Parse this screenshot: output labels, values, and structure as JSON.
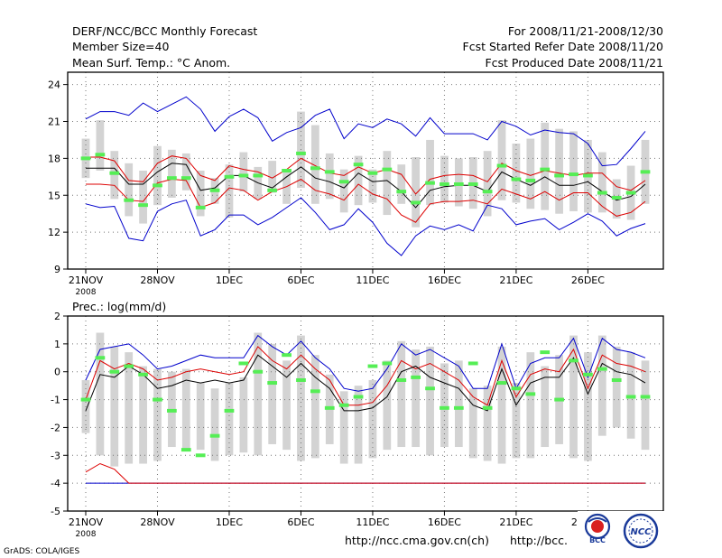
{
  "header": {
    "title": "DERF/NCC/BCC Monthly Forecast",
    "member_size": "Member Size=40",
    "variable": "Mean Surf. Temp.: °C Anom.",
    "period": "For 2008/11/21-2008/12/30",
    "fcst_started": "Fcst Started Refer Date 2008/11/20",
    "fcst_produced": "Fcst Produced Date 2008/11/21"
  },
  "footer": {
    "grads_credit": "GrADS: COLA/IGES",
    "url_ncc": "http://ncc.cma.gov.cn(ch)",
    "url_bcc": "http://bcc.",
    "logo_bcc": "BCC",
    "logo_ncc": "NCC"
  },
  "colors": {
    "box": "#d3d3d3",
    "median": "#55ee55",
    "mean": "#000000",
    "spread": "#dd0000",
    "extreme": "#0000cc",
    "grid": "#777777"
  },
  "chart_data": [
    {
      "type": "box-plume",
      "title": "Mean Surf. Temp.: °C Anom.",
      "start_date": "2008-11-21",
      "days": 40,
      "x_tick_labels": [
        "21NOV",
        "28NOV",
        "1DEC",
        "6DEC",
        "11DEC",
        "16DEC",
        "21DEC",
        "26DEC"
      ],
      "x_tick_days": [
        0,
        5,
        10,
        15,
        20,
        25,
        30,
        35
      ],
      "year_label": "2008",
      "ylim": [
        9,
        25
      ],
      "y_ticks": [
        9,
        12,
        15,
        18,
        21,
        24
      ],
      "series": [
        {
          "name": "max",
          "values": [
            21.2,
            21.8,
            21.8,
            21.5,
            22.5,
            21.8,
            22.4,
            23.0,
            22.0,
            20.2,
            21.4,
            22.0,
            21.3,
            19.4,
            20.1,
            20.5,
            21.5,
            22.0,
            19.6,
            20.8,
            20.5,
            21.2,
            20.8,
            19.8,
            21.3,
            20.0,
            20.0,
            20.0,
            19.5,
            21.0,
            20.6,
            19.9,
            20.3,
            20.1,
            20.0,
            19.2,
            17.4,
            17.5,
            18.8,
            20.2
          ]
        },
        {
          "name": "upper",
          "values": [
            18.1,
            18.1,
            17.8,
            16.2,
            16.1,
            17.6,
            18.2,
            18.0,
            16.6,
            16.2,
            17.4,
            17.1,
            16.9,
            16.4,
            17.1,
            18.0,
            17.4,
            16.8,
            16.6,
            17.3,
            16.8,
            17.1,
            16.7,
            15.1,
            16.3,
            16.6,
            16.7,
            16.6,
            16.1,
            17.6,
            17.0,
            16.6,
            17.0,
            16.8,
            16.6,
            16.8,
            16.8,
            15.7,
            15.4,
            16.2
          ]
        },
        {
          "name": "mean",
          "values": [
            17.2,
            17.2,
            17.2,
            15.9,
            15.9,
            16.9,
            17.6,
            17.5,
            15.4,
            15.6,
            16.6,
            16.6,
            16.0,
            15.6,
            16.5,
            17.3,
            16.4,
            16.1,
            15.6,
            16.8,
            16.1,
            16.2,
            15.3,
            14.0,
            15.4,
            15.7,
            15.8,
            15.8,
            15.3,
            16.9,
            16.3,
            15.8,
            16.5,
            15.8,
            15.8,
            16.1,
            15.3,
            14.6,
            14.9,
            15.9
          ]
        },
        {
          "name": "lower",
          "values": [
            15.9,
            15.9,
            15.8,
            14.6,
            14.5,
            16.0,
            16.3,
            16.2,
            14.0,
            14.4,
            15.6,
            15.4,
            14.6,
            15.3,
            15.7,
            16.3,
            15.4,
            15.1,
            14.6,
            15.9,
            15.1,
            14.7,
            13.4,
            12.8,
            14.3,
            14.5,
            14.5,
            14.6,
            14.3,
            15.5,
            15.1,
            14.7,
            15.3,
            14.6,
            15.2,
            15.2,
            14.1,
            13.3,
            13.6,
            14.5
          ]
        },
        {
          "name": "min",
          "values": [
            14.3,
            14.0,
            14.1,
            11.5,
            11.3,
            13.7,
            14.3,
            14.6,
            11.7,
            12.2,
            13.4,
            13.4,
            12.6,
            13.2,
            14.0,
            14.8,
            13.6,
            12.2,
            12.6,
            13.9,
            12.8,
            11.1,
            10.1,
            11.7,
            12.5,
            12.2,
            12.6,
            12.1,
            14.2,
            13.9,
            12.6,
            12.9,
            13.1,
            12.2,
            12.8,
            13.5,
            12.9,
            11.7,
            12.3,
            12.7
          ]
        },
        {
          "name": "box_top",
          "values": [
            19.6,
            21.1,
            18.6,
            17.6,
            17.0,
            19.0,
            18.7,
            18.4,
            17.0,
            16.4,
            17.5,
            18.5,
            17.3,
            17.8,
            17.1,
            21.8,
            20.7,
            18.4,
            17.1,
            18.2,
            17.1,
            18.6,
            17.5,
            18.1,
            19.5,
            18.2,
            18.0,
            18.1,
            18.6,
            21.1,
            19.2,
            19.6,
            20.9,
            20.4,
            20.2,
            19.5,
            18.5,
            16.3,
            17.4,
            19.5
          ]
        },
        {
          "name": "box_bottom",
          "values": [
            16.4,
            17.0,
            14.7,
            13.3,
            12.7,
            14.2,
            14.8,
            15.4,
            13.3,
            14.3,
            13.2,
            15.3,
            14.7,
            15.2,
            14.3,
            15.6,
            14.3,
            14.7,
            13.6,
            14.2,
            14.4,
            13.4,
            14.3,
            12.4,
            14.2,
            14.4,
            14.1,
            13.9,
            13.3,
            14.6,
            14.4,
            13.9,
            13.8,
            13.5,
            13.7,
            13.6,
            13.6,
            13.1,
            13.0,
            14.3
          ]
        },
        {
          "name": "median",
          "values": [
            18.0,
            18.3,
            16.8,
            14.6,
            14.2,
            15.8,
            16.4,
            16.4,
            14.0,
            15.4,
            16.5,
            16.6,
            16.6,
            15.4,
            17.0,
            18.4,
            17.2,
            16.9,
            16.1,
            17.5,
            16.8,
            17.1,
            15.3,
            14.4,
            16.0,
            15.9,
            15.9,
            15.9,
            15.3,
            17.4,
            16.3,
            16.2,
            17.1,
            16.6,
            16.7,
            16.6,
            15.2,
            14.8,
            15.2,
            16.9
          ]
        }
      ]
    },
    {
      "type": "box-plume",
      "title": "Prec.: log(mm/d)",
      "start_date": "2008-11-21",
      "days": 40,
      "x_tick_labels": [
        "21NOV",
        "28NOV",
        "1DEC",
        "6DEC",
        "11DEC",
        "16DEC",
        "21DEC",
        "26DEC"
      ],
      "x_tick_days": [
        0,
        5,
        10,
        15,
        20,
        25,
        30,
        35
      ],
      "year_label": "2008",
      "ylim": [
        -5,
        2
      ],
      "y_ticks": [
        -5,
        -4,
        -3,
        -2,
        -1,
        0,
        1,
        2
      ],
      "series": [
        {
          "name": "max",
          "values": [
            -0.3,
            0.8,
            0.9,
            1.0,
            0.6,
            0.1,
            0.2,
            0.4,
            0.6,
            0.5,
            0.5,
            0.5,
            1.3,
            0.9,
            0.6,
            1.1,
            0.5,
            0.1,
            -0.6,
            -0.7,
            -0.6,
            0.1,
            1.0,
            0.6,
            0.8,
            0.5,
            0.2,
            -0.6,
            -0.6,
            1.0,
            -0.6,
            0.3,
            0.5,
            0.5,
            1.2,
            -0.2,
            1.2,
            0.8,
            0.7,
            0.5
          ]
        },
        {
          "name": "upper",
          "values": [
            -1.0,
            0.4,
            0.1,
            0.3,
            0.1,
            -0.3,
            -0.2,
            0.0,
            0.1,
            0.0,
            -0.1,
            0.0,
            0.9,
            0.4,
            0.1,
            0.6,
            0.1,
            -0.3,
            -1.2,
            -1.2,
            -1.1,
            -0.5,
            0.4,
            0.1,
            0.3,
            0.0,
            -0.3,
            -0.9,
            -1.2,
            0.4,
            -0.9,
            -0.1,
            0.1,
            0.0,
            0.8,
            -0.6,
            0.6,
            0.3,
            0.2,
            0.0
          ]
        },
        {
          "name": "mean",
          "values": [
            -1.4,
            -0.1,
            -0.2,
            0.2,
            -0.1,
            -0.6,
            -0.5,
            -0.3,
            -0.4,
            -0.3,
            -0.4,
            -0.3,
            0.6,
            0.2,
            -0.2,
            0.3,
            -0.2,
            -0.6,
            -1.4,
            -1.4,
            -1.3,
            -0.9,
            0.0,
            0.2,
            -0.2,
            -0.4,
            -0.6,
            -1.2,
            -1.4,
            0.1,
            -1.2,
            -0.4,
            -0.2,
            -0.2,
            0.5,
            -0.8,
            0.3,
            0.0,
            -0.1,
            -0.4
          ]
        },
        {
          "name": "lower",
          "values": [
            -3.6,
            -3.3,
            -3.5,
            -4.0,
            -4.0,
            -4.0,
            -4.0,
            -4.0,
            -4.0,
            -4.0,
            -4.0,
            -4.0,
            -4.0,
            -4.0,
            -4.0,
            -4.0,
            -4.0,
            -4.0,
            -4.0,
            -4.0,
            -4.0,
            -4.0,
            -4.0,
            -4.0,
            -4.0,
            -4.0,
            -4.0,
            -4.0,
            -4.0,
            -4.0,
            -4.0,
            -4.0,
            -4.0,
            -4.0,
            -4.0,
            -4.0,
            -4.0,
            -4.0,
            -4.0,
            -4.0
          ]
        },
        {
          "name": "min",
          "values": [
            -4.0,
            -4.0,
            -4.0,
            -4.0,
            -4.0,
            -4.0,
            -4.0,
            -4.0,
            -4.0,
            -4.0,
            -4.0,
            -4.0,
            -4.0,
            -4.0,
            -4.0,
            -4.0,
            -4.0,
            -4.0,
            -4.0,
            -4.0,
            -4.0,
            -4.0,
            -4.0,
            -4.0,
            -4.0,
            -4.0,
            -4.0,
            -4.0,
            -4.0,
            -4.0,
            -4.0,
            -4.0,
            -4.0,
            -4.0,
            -4.0,
            -4.0,
            -4.0,
            -4.0,
            -4.0,
            -4.0
          ]
        },
        {
          "name": "box_top",
          "values": [
            -0.3,
            1.4,
            0.9,
            0.7,
            0.2,
            0.1,
            0.0,
            0.1,
            -0.4,
            -0.6,
            -0.4,
            -0.2,
            1.4,
            1.0,
            0.4,
            1.3,
            0.6,
            -0.1,
            -0.7,
            -0.5,
            -0.3,
            0.4,
            1.1,
            0.8,
            0.9,
            0.3,
            0.4,
            -0.6,
            -0.5,
            0.9,
            -0.4,
            0.7,
            0.2,
            0.6,
            1.3,
            0.7,
            1.3,
            0.9,
            0.7,
            0.4
          ]
        },
        {
          "name": "box_bottom",
          "values": [
            -2.2,
            -3.0,
            -3.4,
            -3.3,
            -3.3,
            -3.2,
            -2.7,
            -2.8,
            -2.8,
            -3.2,
            -3.0,
            -2.9,
            -3.0,
            -2.6,
            -2.8,
            -3.2,
            -3.1,
            -2.6,
            -3.3,
            -3.3,
            -3.1,
            -2.8,
            -2.7,
            -2.7,
            -3.0,
            -2.7,
            -2.7,
            -3.1,
            -3.2,
            -3.3,
            -3.1,
            -3.1,
            -2.7,
            -2.6,
            -3.1,
            -3.2,
            -2.3,
            -2.0,
            -2.4,
            -2.8
          ]
        },
        {
          "name": "median",
          "values": [
            -1.0,
            0.5,
            0.0,
            0.2,
            -0.1,
            -1.0,
            -1.4,
            -2.8,
            -3.0,
            -2.3,
            -1.4,
            0.3,
            0.0,
            -0.4,
            0.6,
            -0.3,
            -0.7,
            -1.3,
            -1.2,
            -0.9,
            0.2,
            0.3,
            -0.3,
            -0.2,
            -0.6,
            -1.3,
            -1.3,
            0.3,
            -1.3,
            -0.4,
            -0.6,
            -0.8,
            0.7,
            -1.0,
            0.4,
            -0.1,
            0.1,
            -0.3,
            -0.9,
            -0.9
          ]
        }
      ]
    }
  ]
}
